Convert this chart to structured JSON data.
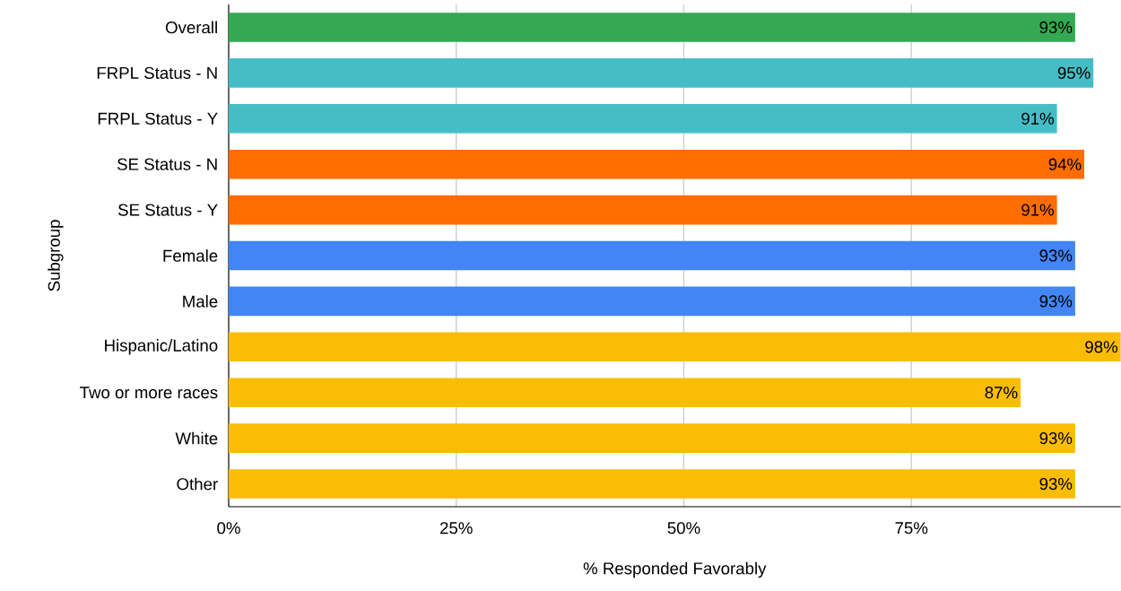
{
  "chart_data": {
    "type": "bar",
    "orientation": "horizontal",
    "xlabel": "% Responded Favorably",
    "ylabel": "Subgroup",
    "categories": [
      "Overall",
      "FRPL Status - N",
      "FRPL Status - Y",
      "SE Status - N",
      "SE Status - Y",
      "Female",
      "Male",
      "Hispanic/Latino",
      "Two or more races",
      "White",
      "Other"
    ],
    "values": [
      93,
      95,
      91,
      94,
      91,
      93,
      93,
      98,
      87,
      93,
      93
    ],
    "value_labels": [
      "93%",
      "95%",
      "91%",
      "94%",
      "91%",
      "93%",
      "93%",
      "98%",
      "87%",
      "93%",
      "93%"
    ],
    "colors": [
      "#34a853",
      "#46bdc6",
      "#46bdc6",
      "#ff6d01",
      "#ff6d01",
      "#4285f4",
      "#4285f4",
      "#fbbc04",
      "#fbbc04",
      "#fbbc04",
      "#fbbc04"
    ],
    "xlim": [
      0,
      98
    ],
    "xticks": [
      {
        "value": 0,
        "label": "0%"
      },
      {
        "value": 25,
        "label": "25%"
      },
      {
        "value": 50,
        "label": "50%"
      },
      {
        "value": 75,
        "label": "75%"
      }
    ],
    "grid": "x"
  }
}
